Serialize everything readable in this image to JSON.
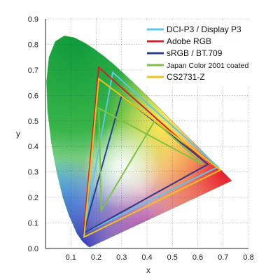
{
  "chart_data": {
    "type": "scatter",
    "subtype": "cie-1931-chromaticity-gamut",
    "xlabel": "x",
    "ylabel": "y",
    "xlim": [
      0.0,
      0.8
    ],
    "ylim": [
      0.0,
      0.9
    ],
    "x_ticks": [
      "0.1",
      "0.2",
      "0.3",
      "0.4",
      "0.5",
      "0.6",
      "0.7",
      "0.8"
    ],
    "y_ticks": [
      "0.0",
      "0.1",
      "0.2",
      "0.3",
      "0.4",
      "0.5",
      "0.6",
      "0.7",
      "0.8",
      "0.9"
    ],
    "grid": true,
    "legend_position": "top-right",
    "spectral_locus": [
      [
        0.1741,
        0.005
      ],
      [
        0.1666,
        0.0089
      ],
      [
        0.144,
        0.0297
      ],
      [
        0.1241,
        0.0578
      ],
      [
        0.0913,
        0.1327
      ],
      [
        0.0687,
        0.2007
      ],
      [
        0.0454,
        0.295
      ],
      [
        0.0235,
        0.4127
      ],
      [
        0.0082,
        0.5384
      ],
      [
        0.0039,
        0.6548
      ],
      [
        0.0139,
        0.7502
      ],
      [
        0.0389,
        0.812
      ],
      [
        0.0743,
        0.8338
      ],
      [
        0.1142,
        0.8262
      ],
      [
        0.1547,
        0.8059
      ],
      [
        0.1929,
        0.7816
      ],
      [
        0.2296,
        0.7543
      ],
      [
        0.2658,
        0.7243
      ],
      [
        0.3016,
        0.6923
      ],
      [
        0.3373,
        0.6589
      ],
      [
        0.3731,
        0.6245
      ],
      [
        0.4087,
        0.5896
      ],
      [
        0.4441,
        0.5547
      ],
      [
        0.4788,
        0.5202
      ],
      [
        0.5125,
        0.4866
      ],
      [
        0.5448,
        0.4544
      ],
      [
        0.5752,
        0.4242
      ],
      [
        0.6029,
        0.3965
      ],
      [
        0.627,
        0.3725
      ],
      [
        0.6482,
        0.3514
      ],
      [
        0.6658,
        0.334
      ],
      [
        0.6915,
        0.3083
      ],
      [
        0.714,
        0.2859
      ],
      [
        0.7347,
        0.2653
      ]
    ],
    "series": [
      {
        "name": "DCI-P3 / Display P3",
        "color": "#5bc8e8",
        "points": [
          [
            0.68,
            0.32
          ],
          [
            0.265,
            0.69
          ],
          [
            0.15,
            0.06
          ]
        ]
      },
      {
        "name": "Adobe RGB",
        "color": "#d0202a",
        "points": [
          [
            0.64,
            0.33
          ],
          [
            0.21,
            0.71
          ],
          [
            0.15,
            0.06
          ]
        ]
      },
      {
        "name": "sRGB / BT.709",
        "color": "#2a3f8f",
        "points": [
          [
            0.64,
            0.33
          ],
          [
            0.3,
            0.6
          ],
          [
            0.15,
            0.06
          ]
        ]
      },
      {
        "name": "Japan Color 2001 coated",
        "color": "#7dc244",
        "points": [
          [
            0.62,
            0.33
          ],
          [
            0.21,
            0.55
          ],
          [
            0.22,
            0.15
          ],
          [
            0.43,
            0.5
          ]
        ]
      },
      {
        "name": "CS2731-Z",
        "color": "#f0c21a",
        "points": [
          [
            0.69,
            0.308
          ],
          [
            0.21,
            0.665
          ],
          [
            0.152,
            0.045
          ]
        ]
      }
    ]
  }
}
